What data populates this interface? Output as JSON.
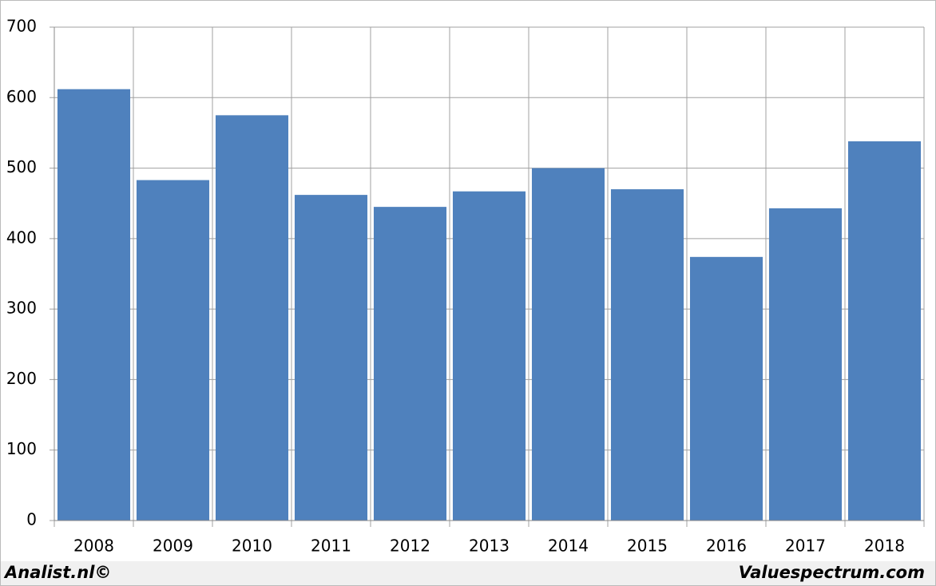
{
  "chart_data": {
    "type": "bar",
    "categories": [
      "2008",
      "2009",
      "2010",
      "2011",
      "2012",
      "2013",
      "2014",
      "2015",
      "2016",
      "2017",
      "2018"
    ],
    "values": [
      612,
      483,
      575,
      462,
      445,
      467,
      500,
      470,
      374,
      443,
      538
    ],
    "color": "#4f81bd",
    "ylim": [
      0,
      700
    ],
    "yticks": [
      0,
      100,
      200,
      300,
      400,
      500,
      600,
      700
    ],
    "grid": true
  },
  "footer": {
    "left": "Analist.nl©",
    "right": "Valuespectrum.com"
  }
}
